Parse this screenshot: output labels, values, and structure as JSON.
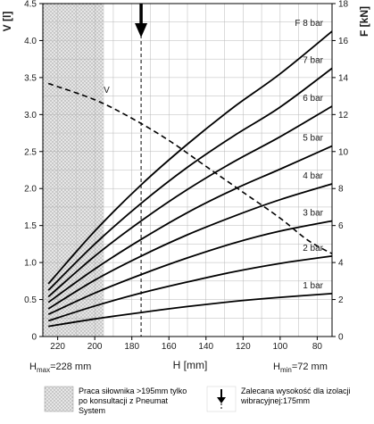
{
  "chart_data": {
    "type": "line",
    "x_axis": {
      "label": "H [mm]",
      "range": [
        228,
        72
      ],
      "reversed": true,
      "ticks": [
        "220",
        "200",
        "180",
        "160",
        "140",
        "120",
        "100",
        "80"
      ],
      "tick_values": [
        220,
        200,
        180,
        160,
        140,
        120,
        100,
        80
      ]
    },
    "y_left": {
      "label": "V [l]",
      "range": [
        0,
        4.5
      ],
      "ticks": [
        "0",
        "0.5",
        "1.0",
        "1.5",
        "2.0",
        "2.5",
        "3.0",
        "3.5",
        "4.0",
        "4.5"
      ],
      "tick_values": [
        0,
        0.5,
        1.0,
        1.5,
        2.0,
        2.5,
        3.0,
        3.5,
        4.0,
        4.5
      ]
    },
    "y_right": {
      "label": "F [kN]",
      "range": [
        0,
        18
      ],
      "ticks": [
        "0",
        "2",
        "4",
        "6",
        "8",
        "10",
        "12",
        "14",
        "16",
        "18"
      ],
      "tick_values": [
        0,
        2,
        4,
        6,
        8,
        10,
        12,
        14,
        16,
        18
      ]
    },
    "grid": true,
    "hmax_label": {
      "prefix": "H",
      "sub": "max",
      "suffix": "=228 mm"
    },
    "hmin_label": {
      "prefix": "H",
      "sub": "min",
      "suffix": "=72 mm"
    },
    "force_series": [
      {
        "name": "1 bar",
        "axis": "right",
        "x": [
          225,
          200,
          175,
          150,
          125,
          100,
          72
        ],
        "y": [
          0.55,
          0.95,
          1.3,
          1.62,
          1.9,
          2.12,
          2.32
        ]
      },
      {
        "name": "2 bar",
        "axis": "right",
        "x": [
          225,
          200,
          175,
          150,
          125,
          100,
          72
        ],
        "y": [
          0.85,
          1.65,
          2.35,
          2.95,
          3.5,
          3.95,
          4.35
        ]
      },
      {
        "name": "3 bar",
        "axis": "right",
        "x": [
          225,
          200,
          175,
          150,
          125,
          100,
          72
        ],
        "y": [
          1.2,
          2.35,
          3.35,
          4.25,
          5.05,
          5.7,
          6.25
        ]
      },
      {
        "name": "4 bar",
        "axis": "right",
        "x": [
          225,
          200,
          175,
          150,
          125,
          100,
          72
        ],
        "y": [
          1.5,
          3.05,
          4.35,
          5.5,
          6.5,
          7.4,
          8.25
        ]
      },
      {
        "name": "5 bar",
        "axis": "right",
        "x": [
          225,
          200,
          175,
          150,
          125,
          100,
          72
        ],
        "y": [
          1.85,
          3.65,
          5.25,
          6.7,
          7.95,
          9.05,
          10.3
        ]
      },
      {
        "name": "6 bar",
        "axis": "right",
        "x": [
          225,
          200,
          175,
          150,
          125,
          100,
          72
        ],
        "y": [
          2.15,
          4.35,
          6.25,
          7.95,
          9.45,
          10.8,
          12.45
        ]
      },
      {
        "name": "7 bar",
        "axis": "right",
        "x": [
          225,
          200,
          175,
          150,
          125,
          100,
          72
        ],
        "y": [
          2.5,
          5.0,
          7.2,
          9.15,
          10.85,
          12.4,
          14.5
        ]
      },
      {
        "name": "F 8 bar",
        "axis": "right",
        "x": [
          225,
          200,
          175,
          150,
          125,
          100,
          72
        ],
        "y": [
          2.85,
          5.7,
          8.2,
          10.4,
          12.4,
          14.2,
          16.5
        ]
      }
    ],
    "volume_series": {
      "name": "V",
      "axis": "left",
      "style": "dashed",
      "x": [
        225,
        200,
        180,
        160,
        140,
        120,
        100,
        85,
        72
      ],
      "y": [
        3.42,
        3.2,
        2.95,
        2.65,
        2.3,
        1.95,
        1.6,
        1.3,
        1.12
      ]
    },
    "recommended_height": {
      "value": 175,
      "style": "dashed",
      "marker": "down-arrow"
    },
    "shaded_region": {
      "from": 228,
      "to": 195,
      "pattern": "dotted"
    }
  },
  "legend": {
    "shaded_text": "Praca siłownika >195mm tylko po konsultacji z Pneumat System",
    "arrow_text": "Zalecana wysokość dla izolacji wibracyjnej:175mm"
  },
  "colors": {
    "curve": "#000000",
    "grid": "#b8b8b8",
    "shade_fill": "#e6e6e6",
    "shade_dot": "#9a9a9a"
  }
}
